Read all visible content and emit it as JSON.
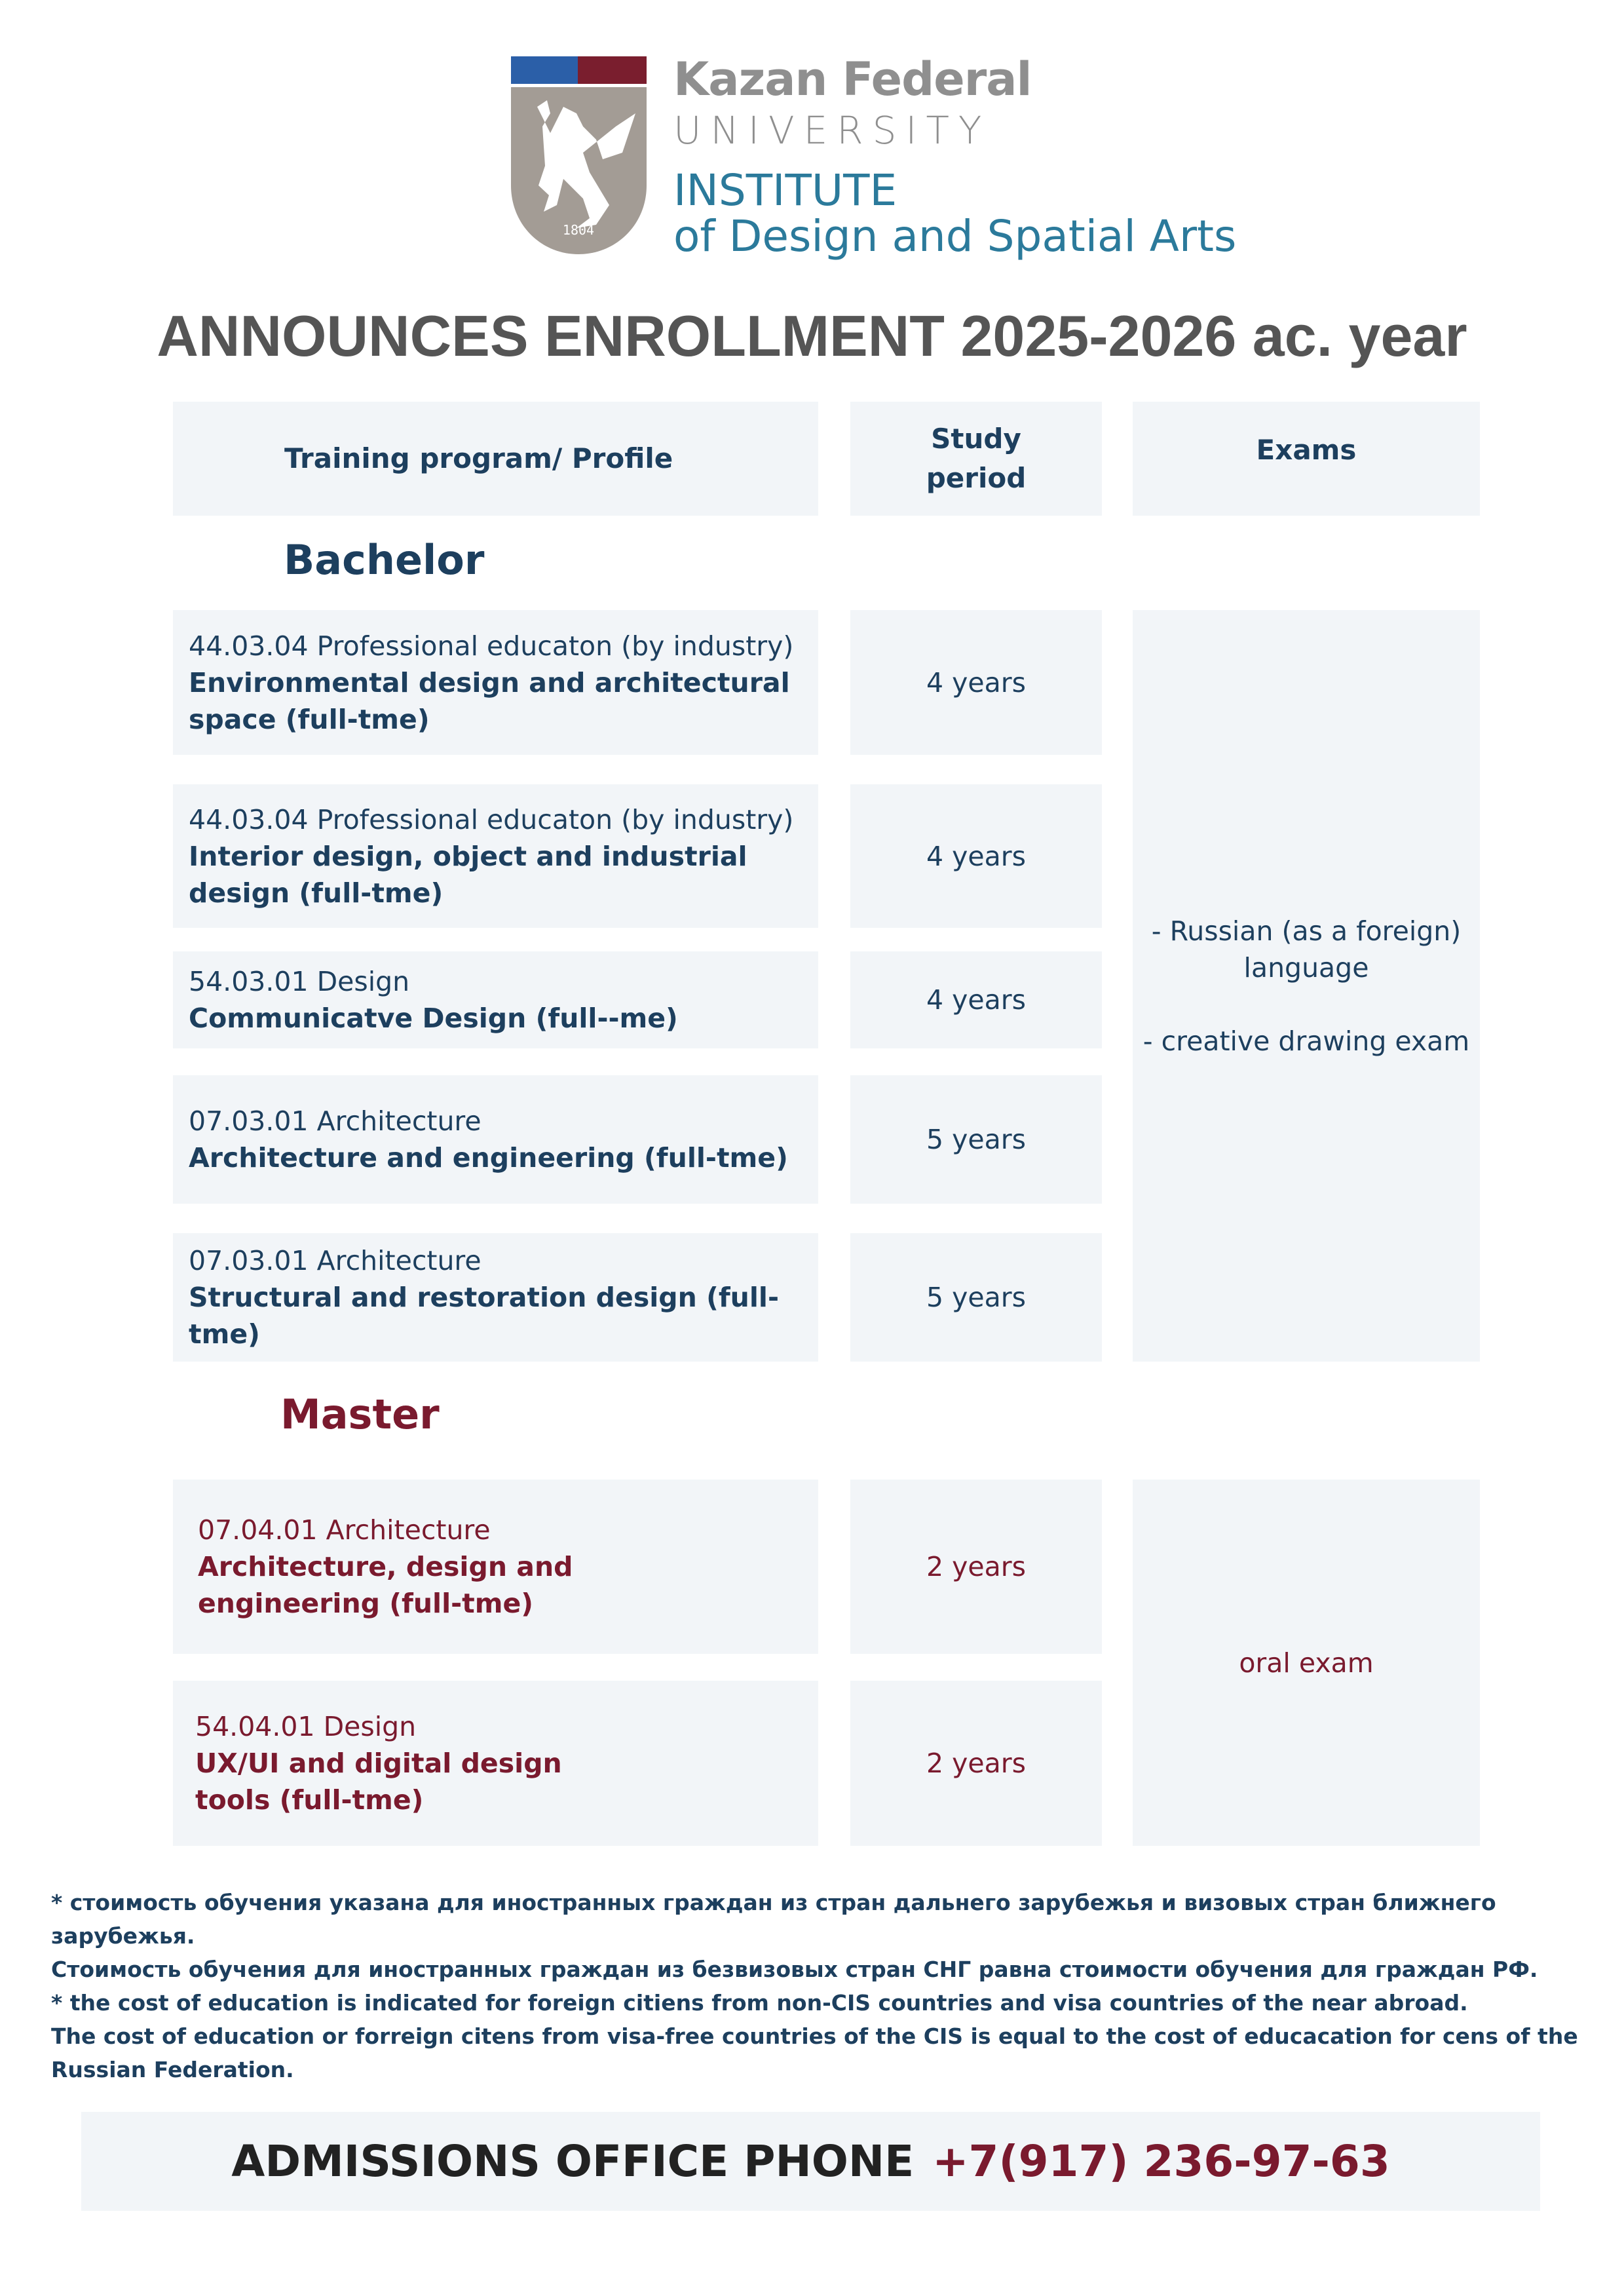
{
  "logo": {
    "line1": "Kazan Federal",
    "line2": "UNIVERSITY",
    "line3": "INSTITUTE",
    "line4": "of Design and Spatial Arts",
    "year": "1804",
    "colors": {
      "blue": "#2b5fa8",
      "maroon": "#7a1e2e",
      "shield": "#a39c95"
    }
  },
  "title": "ANNOUNCES ENROLLMENT 2025-2026 ac. year",
  "headers": {
    "program": "Training program/ Profile",
    "period_line1": "Study",
    "period_line2": "period",
    "exams": "Exams"
  },
  "bachelor": {
    "label": "Bachelor",
    "rows": [
      {
        "code": "44.03.04 Professional educaton (by industry)",
        "profile": "Environmental design and architectural space (full-tme)",
        "period": "4 years"
      },
      {
        "code": "44.03.04 Professional educaton (by industry)",
        "profile": "Interior design, object and industrial design (full-tme)",
        "period": "4 years"
      },
      {
        "code": "54.03.01 Design",
        "profile": "Communicatve Design (full--me)",
        "period": "4 years"
      },
      {
        "code": "07.03.01 Architecture",
        "profile": "Architecture and engineering (full-tme)",
        "period": "5 years"
      },
      {
        "code": "07.03.01 Architecture",
        "profile": "Structural and restoration design (full-tme)",
        "period": "5 years"
      }
    ],
    "exams_line1": "- Russian (as a foreign)",
    "exams_line2": "language",
    "exams_line3": "- creative drawing exam"
  },
  "master": {
    "label": "Master",
    "rows": [
      {
        "code": "07.04.01 Architecture",
        "profile": "Architecture, design and engineering (full-tme)",
        "period": "2 years"
      },
      {
        "code": "54.04.01 Design",
        "profile": "UX/UI and digital design tools (full-tme)",
        "period": "2 years"
      }
    ],
    "exams": "oral exam"
  },
  "notes": [
    "* стоимость обучения указана для иностранных граждан из стран дальнего зарубежья и визовых стран ближнего зарубежья.",
    "Стоимость обучения для иностранных граждан из безвизовых стран СНГ равна стоимости обучения для граждан РФ.",
    "* the cost of education is indicated for foreign citiens from non-CIS countries and visa countries of the near abroad.",
    "The cost of education or forreign citens from visa-free countries of the CIS is equal to the cost of educacation for cens of the Russian Federation."
  ],
  "phone": {
    "label": "ADMISSIONS OFFICE PHONE",
    "number": "+7(917) 236-97-63"
  }
}
